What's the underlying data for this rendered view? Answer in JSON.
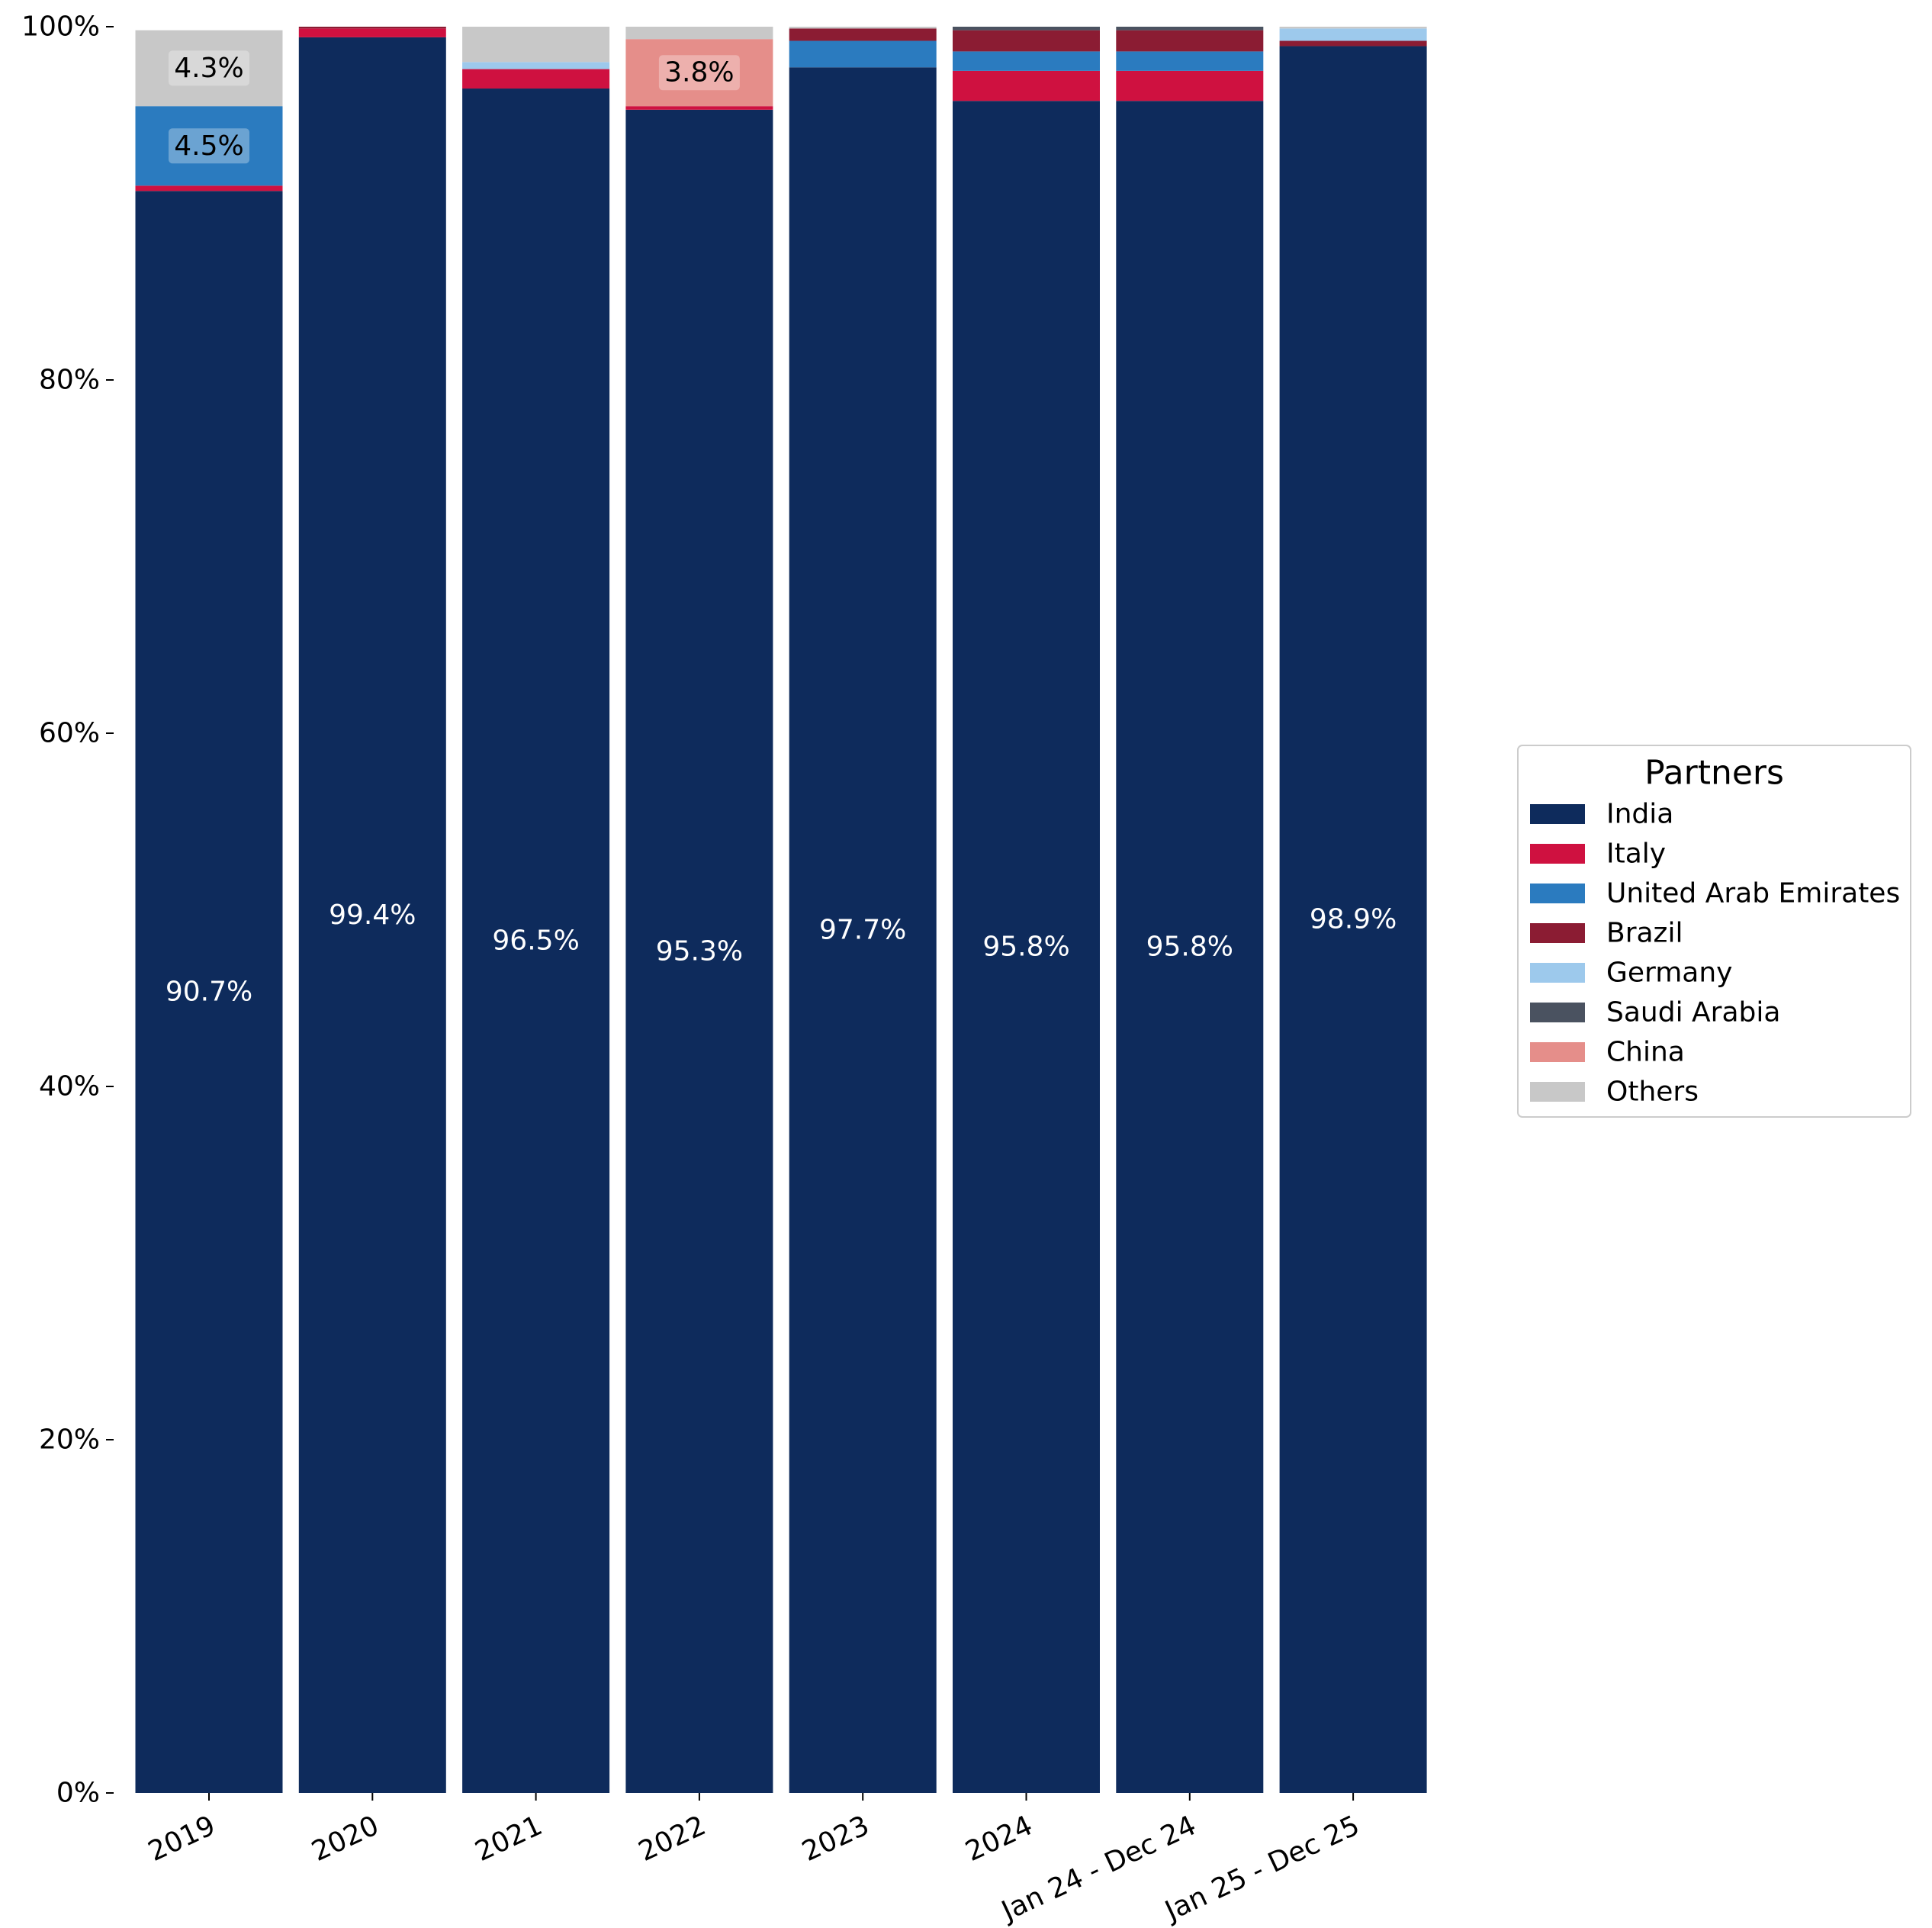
{
  "chart_data": {
    "type": "bar",
    "stacked": true,
    "categories": [
      "2019",
      "2020",
      "2021",
      "2022",
      "2023",
      "2024",
      "Jan 24 - Dec 24",
      "Jan 25 - Dec 25"
    ],
    "ylim": [
      0,
      100
    ],
    "yticks": [
      0,
      20,
      40,
      60,
      80,
      100
    ],
    "ytick_labels": [
      "0%",
      "20%",
      "40%",
      "60%",
      "80%",
      "100%"
    ],
    "xlabel": "",
    "ylabel": "",
    "grid": false,
    "series": [
      {
        "name": "India",
        "color": "#0e2b5c",
        "values": [
          90.7,
          99.4,
          96.5,
          95.3,
          97.7,
          95.8,
          95.8,
          98.9
        ]
      },
      {
        "name": "Italy",
        "color": "#cf1140",
        "values": [
          0.3,
          0.5,
          1.1,
          0.2,
          0.0,
          1.7,
          1.7,
          0.0
        ]
      },
      {
        "name": "United Arab Emirates",
        "color": "#2b7bbf",
        "values": [
          4.5,
          0.0,
          0.0,
          0.0,
          1.5,
          1.1,
          1.1,
          0.0
        ]
      },
      {
        "name": "Brazil",
        "color": "#8b1c33",
        "values": [
          0.0,
          0.1,
          0.0,
          0.0,
          0.7,
          1.2,
          1.2,
          0.3
        ]
      },
      {
        "name": "Germany",
        "color": "#9dc9ec",
        "values": [
          0.0,
          0.0,
          0.4,
          0.0,
          0.0,
          0.0,
          0.0,
          0.7
        ]
      },
      {
        "name": "Saudi Arabia",
        "color": "#4a5260",
        "values": [
          0.0,
          0.0,
          0.0,
          0.0,
          0.0,
          0.2,
          0.2,
          0.0
        ]
      },
      {
        "name": "China",
        "color": "#e58e8a",
        "values": [
          0.0,
          0.0,
          0.0,
          3.8,
          0.0,
          0.0,
          0.0,
          0.0
        ]
      },
      {
        "name": "Others",
        "color": "#c8c8c8",
        "values": [
          4.3,
          0.0,
          2.0,
          0.7,
          0.1,
          0.0,
          0.0,
          0.1
        ]
      }
    ],
    "data_labels": [
      {
        "series": "India",
        "category": "2019",
        "text": "90.7%",
        "style": "plain-light"
      },
      {
        "series": "India",
        "category": "2020",
        "text": "99.4%",
        "style": "plain-light"
      },
      {
        "series": "India",
        "category": "2021",
        "text": "96.5%",
        "style": "plain-light"
      },
      {
        "series": "India",
        "category": "2022",
        "text": "95.3%",
        "style": "plain-light"
      },
      {
        "series": "India",
        "category": "2023",
        "text": "97.7%",
        "style": "plain-light"
      },
      {
        "series": "India",
        "category": "2024",
        "text": "95.8%",
        "style": "plain-light"
      },
      {
        "series": "India",
        "category": "Jan 24 - Dec 24",
        "text": "95.8%",
        "style": "plain-light"
      },
      {
        "series": "India",
        "category": "Jan 25 - Dec 25",
        "text": "98.9%",
        "style": "plain-light"
      },
      {
        "series": "United Arab Emirates",
        "category": "2019",
        "text": "4.5%",
        "style": "boxed"
      },
      {
        "series": "Others",
        "category": "2019",
        "text": "4.3%",
        "style": "boxed"
      },
      {
        "series": "China",
        "category": "2022",
        "text": "3.8%",
        "style": "boxed"
      }
    ],
    "legend": {
      "title": "Partners",
      "placement": "center-right",
      "entries": [
        "India",
        "Italy",
        "United Arab Emirates",
        "Brazil",
        "Germany",
        "Saudi Arabia",
        "China",
        "Others"
      ]
    }
  }
}
